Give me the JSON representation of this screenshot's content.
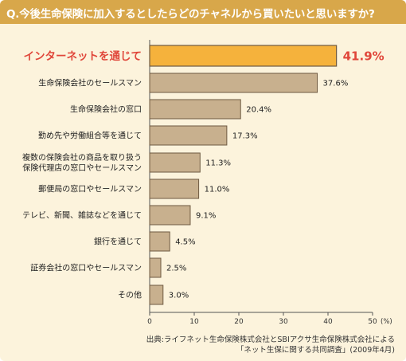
{
  "title": "Q.今後生命保険に加入するとしたらどのチャネルから買いたいと思いますか?",
  "colors": {
    "title_bar": "#d8a74a",
    "background": "#fcf3dc",
    "highlight_bar": "#f5b23c",
    "highlight_text": "#e0463a",
    "bar": "#c8b08e",
    "bar_border": "#6e5a42"
  },
  "source": {
    "line1": "出典:ライフネット生命保険株式会社とSBIアクサ生命保険株式会社による",
    "line2": "「ネット生保に関する共同調査」(2009年4月)"
  },
  "chart_data": {
    "type": "bar",
    "orientation": "horizontal",
    "categories": [
      [
        "インターネットを通じて"
      ],
      [
        "生命保険会社のセールスマン"
      ],
      [
        "生命保険会社の窓口"
      ],
      [
        "勤め先や労働組合等を通じて"
      ],
      [
        "複数の保険会社の商品を取り扱う",
        "保険代理店の窓口やセールスマン"
      ],
      [
        "郵便局の窓口やセールスマン"
      ],
      [
        "テレビ、新聞、雑誌などを通じて"
      ],
      [
        "銀行を通じて"
      ],
      [
        "証券会社の窓口やセールスマン"
      ],
      [
        "その他"
      ]
    ],
    "values": [
      41.9,
      37.6,
      20.4,
      17.3,
      11.3,
      11.0,
      9.1,
      4.5,
      2.5,
      3.0
    ],
    "value_labels": [
      "41.9%",
      "37.6%",
      "20.4%",
      "17.3%",
      "11.3%",
      "11.0%",
      "9.1%",
      "4.5%",
      "2.5%",
      "3.0%"
    ],
    "highlight_index": 0,
    "xlim": [
      0,
      50
    ],
    "xticks": [
      "0",
      "10",
      "20",
      "30",
      "40",
      "50"
    ],
    "xunit": "(%)"
  }
}
